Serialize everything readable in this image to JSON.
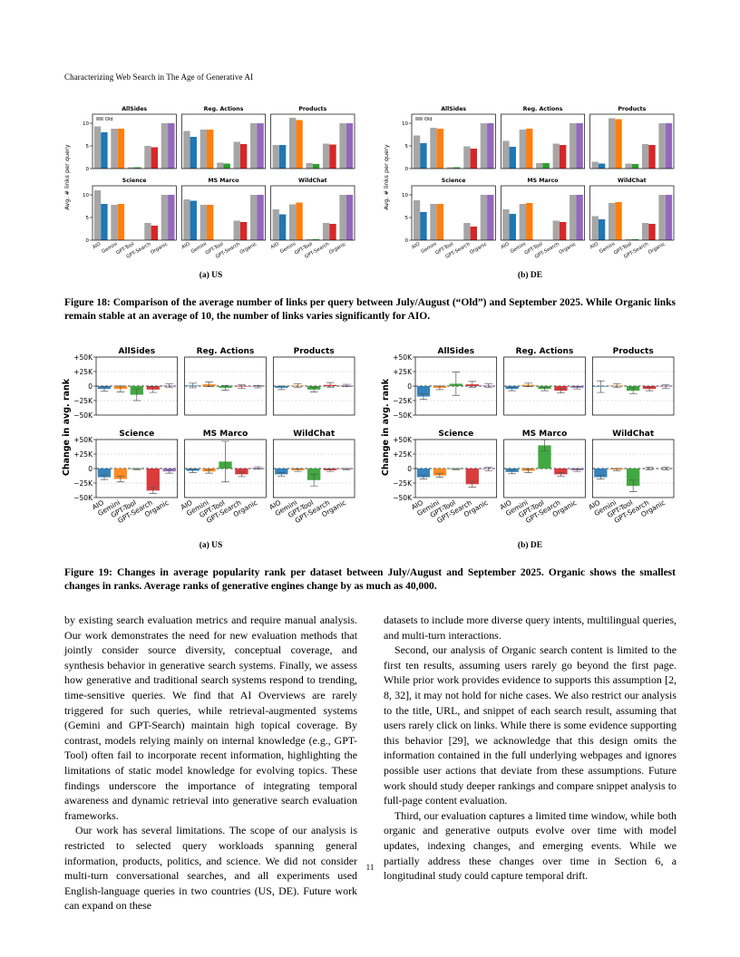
{
  "header": "Characterizing Web Search in The Age of Generative AI",
  "chart_data": [
    {
      "type": "bar",
      "ylabel": "Avg. # links per query",
      "caption": "(a) US",
      "grid": false,
      "legend": "upper left",
      "categories": [
        "AIO",
        "Gemini",
        "GPT-Tool",
        "GPT-Search",
        "Organic"
      ],
      "series_styles": [
        {
          "name": "Old",
          "color": "#a6a6a6"
        },
        {
          "colors": [
            "#1f77b4",
            "#ff7f0e",
            "#2ca02c",
            "#d62728",
            "#9467bd"
          ]
        }
      ],
      "ylim": [
        0,
        12
      ],
      "yticks": [
        0,
        5,
        10
      ],
      "subplots": [
        {
          "title": "AllSides",
          "series": [
            {
              "values": [
                9.3,
                8.8,
                0.3,
                5.0,
                10.0
              ]
            },
            {
              "values": [
                8.0,
                8.8,
                0.3,
                4.7,
                10.0
              ]
            }
          ]
        },
        {
          "title": "Reg. Actions",
          "series": [
            {
              "values": [
                8.3,
                8.6,
                1.3,
                5.9,
                10.0
              ]
            },
            {
              "values": [
                7.0,
                8.6,
                1.1,
                5.4,
                10.0
              ]
            }
          ]
        },
        {
          "title": "Products",
          "series": [
            {
              "values": [
                5.2,
                11.2,
                1.2,
                5.5,
                10.0
              ]
            },
            {
              "values": [
                5.2,
                10.7,
                1.0,
                5.3,
                10.0
              ]
            }
          ]
        },
        {
          "title": "Science",
          "series": [
            {
              "values": [
                11.0,
                7.8,
                0,
                3.8,
                10.0
              ]
            },
            {
              "values": [
                8.0,
                8.0,
                0,
                3.2,
                10.0
              ]
            }
          ]
        },
        {
          "title": "MS Marco",
          "series": [
            {
              "values": [
                9.0,
                7.8,
                0,
                4.3,
                10.0
              ]
            },
            {
              "values": [
                8.7,
                7.8,
                0,
                4.0,
                10.0
              ]
            }
          ]
        },
        {
          "title": "WildChat",
          "series": [
            {
              "values": [
                6.8,
                7.9,
                0.2,
                3.8,
                10.0
              ]
            },
            {
              "values": [
                5.7,
                8.3,
                0.2,
                3.6,
                10.0
              ]
            }
          ]
        }
      ]
    },
    {
      "type": "bar",
      "ylabel": "Avg. # links per query",
      "caption": "(b) DE",
      "grid": false,
      "legend": "upper left",
      "categories": [
        "AIO",
        "Gemini",
        "GPT-Tool",
        "GPT-Search",
        "Organic"
      ],
      "series_styles": [
        {
          "name": "Old",
          "color": "#a6a6a6"
        },
        {
          "colors": [
            "#1f77b4",
            "#ff7f0e",
            "#2ca02c",
            "#d62728",
            "#9467bd"
          ]
        }
      ],
      "ylim": [
        0,
        12
      ],
      "yticks": [
        0,
        5,
        10
      ],
      "subplots": [
        {
          "title": "AllSides",
          "series": [
            {
              "values": [
                7.3,
                9.0,
                0.3,
                4.9,
                10.0
              ]
            },
            {
              "values": [
                5.6,
                8.8,
                0.3,
                4.4,
                10.0
              ]
            }
          ]
        },
        {
          "title": "Reg. Actions",
          "series": [
            {
              "values": [
                6.1,
                8.6,
                1.2,
                5.5,
                10.0
              ]
            },
            {
              "values": [
                4.8,
                8.8,
                1.2,
                5.2,
                10.0
              ]
            }
          ]
        },
        {
          "title": "Products",
          "series": [
            {
              "values": [
                1.5,
                11.1,
                1.1,
                5.4,
                10.0
              ]
            },
            {
              "values": [
                1.1,
                10.9,
                1.0,
                5.2,
                10.0
              ]
            }
          ]
        },
        {
          "title": "Science",
          "series": [
            {
              "values": [
                8.8,
                8.0,
                0,
                3.8,
                10.0
              ]
            },
            {
              "values": [
                6.2,
                8.0,
                0,
                3.0,
                10.0
              ]
            }
          ]
        },
        {
          "title": "MS Marco",
          "series": [
            {
              "values": [
                6.8,
                8.0,
                0,
                4.3,
                10.0
              ]
            },
            {
              "values": [
                5.8,
                8.2,
                0,
                4.0,
                10.0
              ]
            }
          ]
        },
        {
          "title": "WildChat",
          "series": [
            {
              "values": [
                5.3,
                8.2,
                0.2,
                3.8,
                10.0
              ]
            },
            {
              "values": [
                4.6,
                8.4,
                0.2,
                3.6,
                10.0
              ]
            }
          ]
        }
      ]
    },
    {
      "type": "bar",
      "ylabel": "Change in avg. rank",
      "caption": "(a) US",
      "grid": true,
      "categories": [
        "AIO",
        "Gemini",
        "GPT-Tool",
        "GPT-Search",
        "Organic"
      ],
      "series_styles": [
        {
          "colors": [
            "#1f77b4",
            "#ff7f0e",
            "#2ca02c",
            "#d62728",
            "#9467bd"
          ]
        }
      ],
      "ylim": [
        -50000,
        50000
      ],
      "yticks": [
        {
          "value": 50000,
          "label": "+50K"
        },
        {
          "value": 25000,
          "label": "+25K"
        },
        0,
        {
          "value": -25000,
          "label": "−25K"
        },
        {
          "value": -50000,
          "label": "−50K"
        }
      ],
      "subplots": [
        {
          "title": "AllSides",
          "series": [
            {
              "values": [
                -5000,
                -5000,
                -15000,
                -6000,
                1000
              ],
              "errors": [
                4000,
                5000,
                10000,
                5000,
                3000
              ]
            }
          ]
        },
        {
          "title": "Reg. Actions",
          "series": [
            {
              "values": [
                1000,
                3000,
                -3000,
                -1000,
                -1000
              ],
              "errors": [
                4000,
                4000,
                4000,
                3000,
                2000
              ]
            }
          ]
        },
        {
          "title": "Products",
          "series": [
            {
              "values": [
                -3000,
                1000,
                -6000,
                2000,
                1000
              ],
              "errors": [
                3000,
                3000,
                4000,
                4000,
                2000
              ]
            }
          ]
        },
        {
          "title": "Science",
          "series": [
            {
              "values": [
                -15000,
                -18000,
                -1000,
                -38000,
                -5000
              ],
              "errors": [
                4000,
                5000,
                1000,
                5000,
                3000
              ]
            }
          ]
        },
        {
          "title": "MS Marco",
          "series": [
            {
              "values": [
                -4000,
                -5000,
                12000,
                -10000,
                1000
              ],
              "errors": [
                3000,
                3000,
                35000,
                4000,
                2000
              ]
            }
          ]
        },
        {
          "title": "WildChat",
          "series": [
            {
              "values": [
                -10000,
                -3000,
                -20000,
                -3000,
                -1000
              ],
              "errors": [
                3000,
                2000,
                10000,
                2000,
                1000
              ]
            }
          ]
        }
      ]
    },
    {
      "type": "bar",
      "ylabel": "Change in avg. rank",
      "caption": "(b) DE",
      "grid": true,
      "categories": [
        "AIO",
        "Gemini",
        "GPT-Tool",
        "GPT-Search",
        "Organic"
      ],
      "series_styles": [
        {
          "colors": [
            "#1f77b4",
            "#ff7f0e",
            "#2ca02c",
            "#d62728",
            "#9467bd"
          ]
        }
      ],
      "ylim": [
        -50000,
        50000
      ],
      "yticks": [
        {
          "value": 50000,
          "label": "+50K"
        },
        {
          "value": 25000,
          "label": "+25K"
        },
        0,
        {
          "value": -25000,
          "label": "−25K"
        },
        {
          "value": -50000,
          "label": "−50K"
        }
      ],
      "subplots": [
        {
          "title": "AllSides",
          "series": [
            {
              "values": [
                -18000,
                -3000,
                4000,
                3000,
                1000
              ],
              "errors": [
                5000,
                3000,
                20000,
                5000,
                3000
              ]
            }
          ]
        },
        {
          "title": "Reg. Actions",
          "series": [
            {
              "values": [
                -5000,
                2000,
                -5000,
                -8000,
                -3000
              ],
              "errors": [
                3000,
                3000,
                3000,
                4000,
                2000
              ]
            }
          ]
        },
        {
          "title": "Products",
          "series": [
            {
              "values": [
                -1000,
                1000,
                -8000,
                -5000,
                -1000
              ],
              "errors": [
                10000,
                3000,
                5000,
                3000,
                3000
              ]
            }
          ]
        },
        {
          "title": "Science",
          "series": [
            {
              "values": [
                -15000,
                -12000,
                -1000,
                -27000,
                -1000
              ],
              "errors": [
                3000,
                3000,
                1000,
                5000,
                3000
              ]
            }
          ]
        },
        {
          "title": "MS Marco",
          "series": [
            {
              "values": [
                -6000,
                -4000,
                40000,
                -10000,
                -3000
              ],
              "errors": [
                3000,
                3000,
                10000,
                3000,
                2000
              ]
            }
          ]
        },
        {
          "title": "WildChat",
          "series": [
            {
              "values": [
                -15000,
                -2000,
                -30000,
                0,
                0
              ],
              "errors": [
                3000,
                2000,
                10000,
                2000,
                2000
              ]
            }
          ]
        }
      ]
    }
  ],
  "figures": [
    {
      "caption": "Figure 18: Comparison of the average number of links per query between July/August (“Old”) and September 2025. While Organic links remain stable at an average of 10, the number of links varies significantly for AIO."
    },
    {
      "caption": "Figure 19: Changes in average popularity rank per dataset between July/August and September 2025. Organic shows the smallest changes in ranks. Average ranks of generative engines change by as much as 40,000."
    }
  ],
  "body": {
    "left": [
      "by existing search evaluation metrics and require manual analysis. Our work demonstrates the need for new evaluation methods that jointly consider source diversity, conceptual coverage, and synthesis behavior in generative search systems. Finally, we assess how generative and traditional search systems respond to trending, time-sensitive queries. We find that AI Overviews are rarely triggered for such queries, while retrieval-augmented systems (Gemini and GPT-Search) maintain high topical coverage. By contrast, models relying mainly on internal knowledge (e.g., GPT-Tool) often fail to incorporate recent information, highlighting the limitations of static model knowledge for evolving topics. These findings underscore the importance of integrating temporal awareness and dynamic retrieval into generative search evaluation frameworks.",
      "Our work has several limitations. The scope of our analysis is restricted to selected query workloads spanning general information, products, politics, and science. We did not consider multi-turn conversational searches, and all experiments used English-language queries in two countries (US, DE). Future work can expand on these"
    ],
    "right": [
      "datasets to include more diverse query intents, multilingual queries, and multi-turn interactions.",
      "Second, our analysis of Organic search content is limited to the first ten results, assuming users rarely go beyond the first page. While prior work provides evidence to supports this assumption [2, 8, 32], it may not hold for niche cases. We also restrict our analysis to the title, URL, and snippet of each search result, assuming that users rarely click on links. While there is some evidence supporting this behavior [29], we acknowledge that this design omits the information contained in the full underlying webpages and ignores possible user actions that deviate from these assumptions. Future work should study deeper rankings and compare snippet analysis to full-page content evaluation.",
      "Third, our evaluation captures a limited time window, while both organic and generative outputs evolve over time with model updates, indexing changes, and emerging events. While we partially address these changes over time in Section 6, a longitudinal study could capture temporal drift."
    ]
  },
  "page_number": "11"
}
